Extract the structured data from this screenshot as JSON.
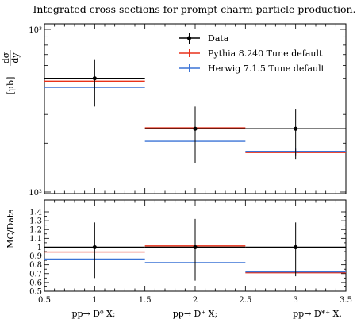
{
  "chart_data": {
    "type": "line",
    "title": "Integrated cross sections for prompt charm particle production.",
    "top_panel": {
      "ylabel": "dσ/dy [μb]",
      "ylabel_fraction_num": "dσ",
      "ylabel_fraction_den": "dy",
      "ylabel_unit": "[μb]",
      "yscale": "log",
      "ylim": [
        100,
        1000
      ],
      "yticks": [
        100,
        1000
      ],
      "ytick_labels": [
        "10²",
        "10³"
      ],
      "legend_placement": "top-right"
    },
    "ratio_panel": {
      "ylabel": "MC/Data",
      "ylim": [
        0.5,
        1.45
      ],
      "ytick_labels": [
        "0.5",
        "0.6",
        "0.7",
        "0.8",
        "0.9",
        "1",
        "1.1",
        "1.2",
        "1.3",
        "1.4"
      ]
    },
    "xlim": [
      0.5,
      3.5
    ],
    "xtick_labels": [
      "0.5",
      "1",
      "1.5",
      "2",
      "2.5",
      "3",
      "3.5"
    ],
    "categories": [
      "pp→ D⁰ X;",
      "pp→ D⁺ X;",
      "pp→ D*⁺ X."
    ],
    "bins": [
      [
        0.5,
        1.5
      ],
      [
        1.5,
        2.5
      ],
      [
        2.5,
        3.5
      ]
    ],
    "series": [
      {
        "name": "Data",
        "color": "#000000",
        "x": [
          1,
          2,
          3
        ],
        "values": [
          500,
          245,
          245
        ],
        "err_low": [
          165,
          95,
          85
        ],
        "err_high": [
          155,
          90,
          80
        ],
        "ratio": [
          1.0,
          1.0,
          1.0
        ],
        "ratio_err_low": [
          0.35,
          0.38,
          0.33
        ],
        "ratio_err_high": [
          0.28,
          0.32,
          0.28
        ]
      },
      {
        "name": "Pythia 8.240 Tune default",
        "color": "#e8311a",
        "values": [
          480,
          248,
          175
        ],
        "ratio": [
          0.945,
          1.015,
          0.71
        ]
      },
      {
        "name": "Herwig 7.1.5 Tune default",
        "color": "#3b73d6",
        "values": [
          440,
          205,
          178
        ],
        "ratio": [
          0.865,
          0.825,
          0.72
        ]
      }
    ]
  }
}
